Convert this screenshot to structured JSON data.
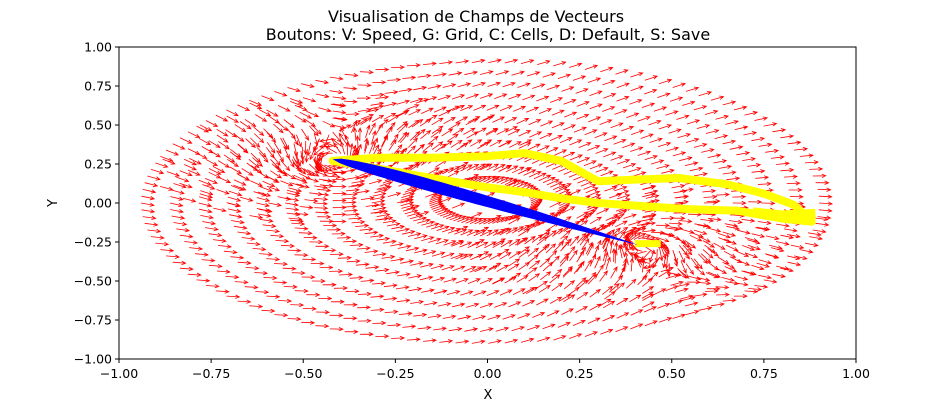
{
  "chart_data": {
    "type": "quiver",
    "title": "Visualisation de Champs de Vecteurs",
    "subtitle": "Boutons: V: Speed, G: Grid, C: Cells, D: Default, S: Save",
    "xlabel": "X",
    "ylabel": "Y",
    "xlim": [
      -1.0,
      1.0
    ],
    "ylim": [
      -1.0,
      1.0
    ],
    "x_ticks": [
      "−1.00",
      "−0.75",
      "−0.50",
      "−0.25",
      "0.00",
      "0.25",
      "0.50",
      "0.75",
      "1.00"
    ],
    "y_ticks": [
      "1.00",
      "0.75",
      "0.50",
      "0.25",
      "0.00",
      "−0.25",
      "−0.50",
      "−0.75",
      "−1.00"
    ],
    "grid": false,
    "airfoil": {
      "leading_edge": [
        -0.42,
        0.28
      ],
      "trailing_edge": [
        0.41,
        -0.27
      ],
      "color": "#0000ff"
    },
    "streamline": {
      "color": "#ffff00",
      "points": [
        [
          -0.42,
          0.27
        ],
        [
          -0.3,
          0.29
        ],
        [
          -0.15,
          0.29
        ],
        [
          0.0,
          0.3
        ],
        [
          0.1,
          0.32
        ],
        [
          0.2,
          0.27
        ],
        [
          0.3,
          0.14
        ],
        [
          0.4,
          0.15
        ],
        [
          0.52,
          0.16
        ],
        [
          0.65,
          0.12
        ],
        [
          0.75,
          0.06
        ],
        [
          0.83,
          -0.01
        ],
        [
          0.88,
          -0.12
        ],
        [
          0.8,
          -0.1
        ],
        [
          0.68,
          -0.05
        ],
        [
          0.55,
          -0.04
        ],
        [
          0.42,
          -0.02
        ],
        [
          0.3,
          0.0
        ],
        [
          0.2,
          0.03
        ],
        [
          0.1,
          0.07
        ],
        [
          0.0,
          0.1
        ],
        [
          -0.1,
          0.14
        ],
        [
          -0.2,
          0.18
        ],
        [
          -0.32,
          0.23
        ],
        [
          -0.42,
          0.27
        ]
      ],
      "tail": [
        [
          0.4,
          -0.26
        ],
        [
          0.47,
          -0.26
        ]
      ],
      "lower_band": [
        [
          0.72,
          -0.06
        ],
        [
          0.8,
          -0.08
        ],
        [
          0.89,
          -0.07
        ]
      ]
    },
    "vector_field": {
      "color": "#ff0000",
      "domain": "ellipse",
      "center": [
        -0.02,
        0.0
      ],
      "semi_axes": [
        0.92,
        0.9
      ],
      "vortex_centers": [
        [
          -0.42,
          0.28
        ],
        [
          0.42,
          -0.27
        ]
      ]
    }
  }
}
